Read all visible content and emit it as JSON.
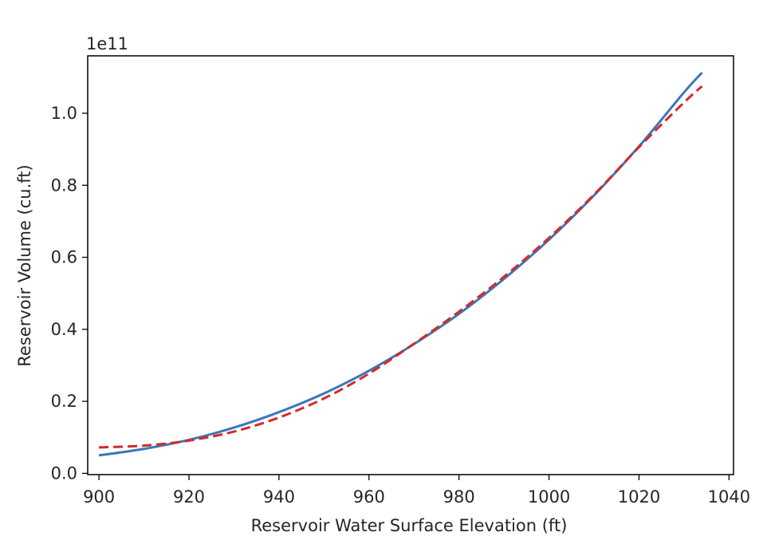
{
  "chart_data": {
    "type": "line",
    "xlabel": "Reservoir Water Surface Elevation (ft)",
    "ylabel": "Reservoir Volume (cu.ft)",
    "y_offset_text": "1e11",
    "xlim": [
      897.5,
      1041
    ],
    "ylim": [
      -0.0035,
      1.1595
    ],
    "xticks": [
      900,
      920,
      940,
      960,
      980,
      1000,
      1020,
      1040
    ],
    "xtick_labels": [
      "900",
      "920",
      "940",
      "960",
      "980",
      "1000",
      "1020",
      "1040"
    ],
    "yticks": [
      0.0,
      0.2,
      0.4,
      0.6,
      0.8,
      1.0
    ],
    "ytick_labels": [
      "0.0",
      "0.2",
      "0.4",
      "0.6",
      "0.8",
      "1.0"
    ],
    "grid": false,
    "series": [
      {
        "style": "solid",
        "color": "#3a77b8",
        "x": [
          900,
          910,
          920,
          930,
          940,
          950,
          960,
          970,
          980,
          990,
          1000,
          1010,
          1020,
          1030,
          1034
        ],
        "y": [
          0.05,
          0.068,
          0.093,
          0.127,
          0.17,
          0.222,
          0.285,
          0.359,
          0.443,
          0.54,
          0.649,
          0.772,
          0.908,
          1.058,
          1.113
        ]
      },
      {
        "style": "dashed",
        "color": "#d42a2a",
        "x": [
          900,
          910,
          920,
          930,
          940,
          950,
          960,
          970,
          980,
          990,
          1000,
          1010,
          1020,
          1030,
          1034
        ],
        "y": [
          0.072,
          0.077,
          0.091,
          0.116,
          0.155,
          0.208,
          0.277,
          0.36,
          0.449,
          0.546,
          0.654,
          0.774,
          0.906,
          1.03,
          1.075
        ]
      }
    ]
  }
}
